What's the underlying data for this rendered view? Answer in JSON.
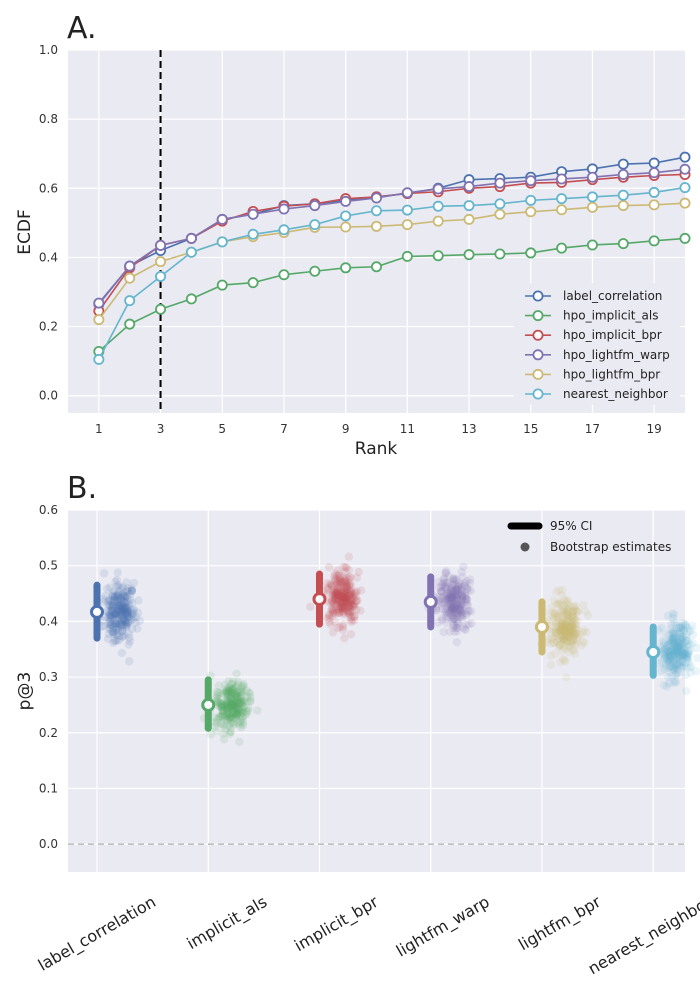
{
  "chart_data": [
    {
      "panel_label": "A.",
      "type": "line",
      "xlabel": "Rank",
      "ylabel": "ECDF",
      "x": [
        1,
        2,
        3,
        4,
        5,
        6,
        7,
        8,
        9,
        10,
        11,
        12,
        13,
        14,
        15,
        16,
        17,
        18,
        19,
        20
      ],
      "xlim": [
        0,
        20
      ],
      "ylim": [
        -0.05,
        1.0
      ],
      "xticks": [
        "1",
        "3",
        "5",
        "7",
        "9",
        "11",
        "13",
        "15",
        "17",
        "19"
      ],
      "yticks": [
        "0.0",
        "0.2",
        "0.4",
        "0.6",
        "0.8",
        "1.0"
      ],
      "grid": true,
      "vline": {
        "x": 3,
        "style": "dashed",
        "color": "#000000"
      },
      "legend_position": "lower-right",
      "series": [
        {
          "name": "label_correlation",
          "color": "#4c72b0",
          "values": [
            0.265,
            0.375,
            0.42,
            0.455,
            0.51,
            0.525,
            0.55,
            0.555,
            0.565,
            0.575,
            0.585,
            0.6,
            0.625,
            0.628,
            0.632,
            0.648,
            0.656,
            0.67,
            0.673,
            0.69
          ]
        },
        {
          "name": "hpo_implicit_als",
          "color": "#55a868",
          "values": [
            0.128,
            0.207,
            0.25,
            0.28,
            0.32,
            0.327,
            0.35,
            0.36,
            0.37,
            0.373,
            0.403,
            0.405,
            0.408,
            0.41,
            0.413,
            0.427,
            0.436,
            0.44,
            0.448,
            0.455
          ]
        },
        {
          "name": "hpo_implicit_bpr",
          "color": "#c44e52",
          "values": [
            0.245,
            0.37,
            0.435,
            0.455,
            0.505,
            0.533,
            0.548,
            0.555,
            0.57,
            0.575,
            0.585,
            0.59,
            0.6,
            0.605,
            0.615,
            0.617,
            0.625,
            0.632,
            0.637,
            0.64
          ]
        },
        {
          "name": "hpo_lightfm_warp",
          "color": "#8172b2",
          "values": [
            0.268,
            0.375,
            0.435,
            0.455,
            0.51,
            0.525,
            0.54,
            0.55,
            0.562,
            0.572,
            0.587,
            0.598,
            0.605,
            0.615,
            0.622,
            0.627,
            0.632,
            0.64,
            0.645,
            0.655
          ]
        },
        {
          "name": "hpo_lightfm_bpr",
          "color": "#ccb974",
          "values": [
            0.22,
            0.34,
            0.388,
            0.415,
            0.445,
            0.46,
            0.472,
            0.487,
            0.488,
            0.49,
            0.495,
            0.505,
            0.51,
            0.525,
            0.532,
            0.538,
            0.545,
            0.55,
            0.552,
            0.557
          ]
        },
        {
          "name": "nearest_neighbor",
          "color": "#64b5cd",
          "values": [
            0.105,
            0.275,
            0.345,
            0.415,
            0.445,
            0.467,
            0.48,
            0.495,
            0.52,
            0.535,
            0.537,
            0.548,
            0.55,
            0.555,
            0.565,
            0.57,
            0.575,
            0.58,
            0.588,
            0.602
          ]
        }
      ]
    },
    {
      "panel_label": "B.",
      "type": "scatter",
      "ylabel": "p@3",
      "ylim": [
        -0.05,
        0.6
      ],
      "yticks": [
        "0.0",
        "0.1",
        "0.2",
        "0.3",
        "0.4",
        "0.5",
        "0.6"
      ],
      "grid": true,
      "hline": {
        "y": 0.0,
        "style": "dashed",
        "color": "#c0c0c0"
      },
      "legend_position": "upper-right",
      "legend": [
        {
          "label": "95% CI",
          "marker": "line"
        },
        {
          "label": "Bootstrap estimates",
          "marker": "dot"
        }
      ],
      "categories": [
        "label_correlation",
        "implicit_als",
        "implicit_bpr",
        "lightfm_warp",
        "lightfm_bpr",
        "nearest_neighbor"
      ],
      "series": [
        {
          "category": "label_correlation",
          "color": "#4c72b0",
          "mean": 0.417,
          "ci": [
            0.37,
            0.465
          ]
        },
        {
          "category": "implicit_als",
          "color": "#55a868",
          "mean": 0.25,
          "ci": [
            0.208,
            0.295
          ]
        },
        {
          "category": "implicit_bpr",
          "color": "#c44e52",
          "mean": 0.44,
          "ci": [
            0.395,
            0.485
          ]
        },
        {
          "category": "lightfm_warp",
          "color": "#8172b2",
          "mean": 0.435,
          "ci": [
            0.39,
            0.48
          ]
        },
        {
          "category": "lightfm_bpr",
          "color": "#ccb974",
          "mean": 0.39,
          "ci": [
            0.345,
            0.435
          ]
        },
        {
          "category": "nearest_neighbor",
          "color": "#64b5cd",
          "mean": 0.345,
          "ci": [
            0.303,
            0.39
          ]
        }
      ]
    }
  ]
}
